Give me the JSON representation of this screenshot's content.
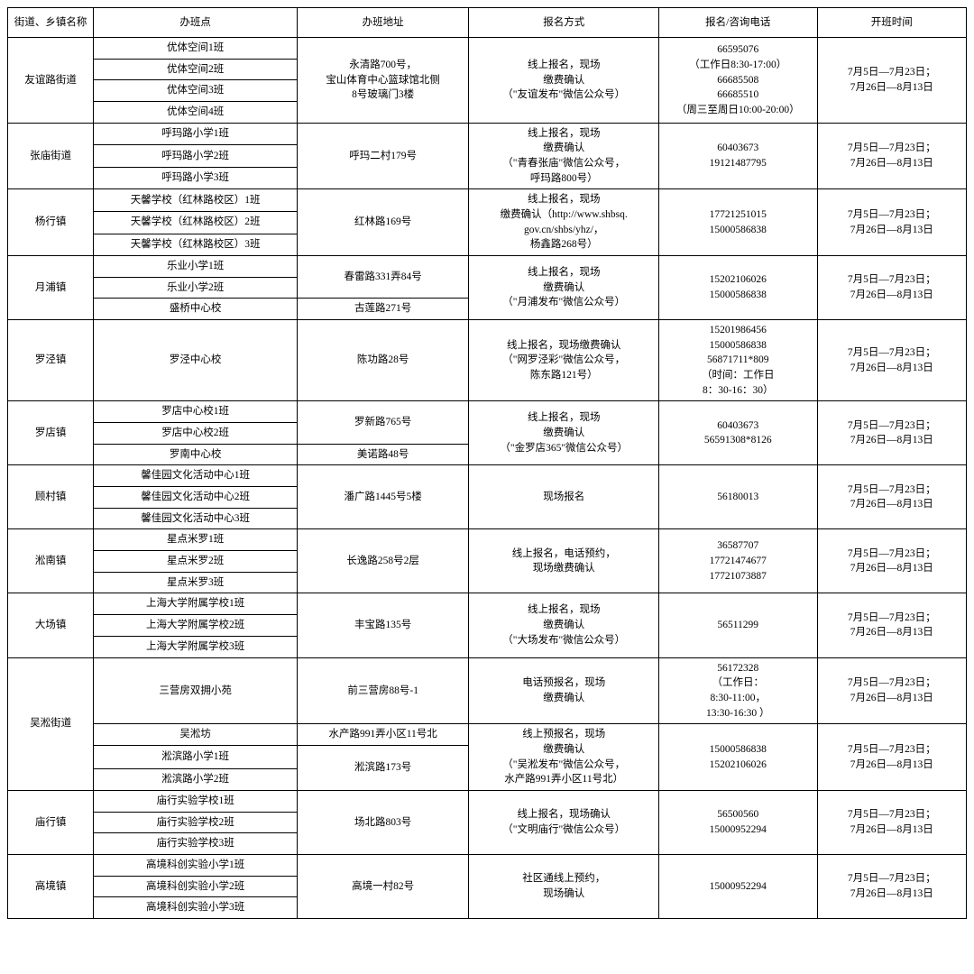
{
  "columns": [
    "街道、乡镇名称",
    "办班点",
    "办班地址",
    "报名方式",
    "报名/咨询电话",
    "开班时间"
  ],
  "districts": [
    {
      "name": "友谊路街道",
      "rows": [
        {
          "class": "优体空间1班",
          "address": "永清路700号，\n宝山体育中心篮球馆北侧\n8号玻璃门3楼",
          "address_rowspan": 4,
          "apply": "线上报名，现场\n缴费确认\n（\"友谊发布\"微信公众号）",
          "apply_rowspan": 4,
          "phone": "66595076\n（工作日8:30-17:00）\n66685508\n66685510\n（周三至周日10:00-20:00）",
          "phone_rowspan": 4,
          "time": "7月5日—7月23日；\n7月26日—8月13日",
          "time_rowspan": 4
        },
        {
          "class": "优体空间2班"
        },
        {
          "class": "优体空间3班"
        },
        {
          "class": "优体空间4班"
        }
      ]
    },
    {
      "name": "张庙街道",
      "rows": [
        {
          "class": "呼玛路小学1班",
          "address": "呼玛二村179号",
          "address_rowspan": 3,
          "apply": "线上报名，现场\n缴费确认\n（\"青春张庙\"微信公众号，\n呼玛路800号）",
          "apply_rowspan": 3,
          "phone": "60403673\n19121487795",
          "phone_rowspan": 3,
          "time": "7月5日—7月23日；\n7月26日—8月13日",
          "time_rowspan": 3
        },
        {
          "class": "呼玛路小学2班"
        },
        {
          "class": "呼玛路小学3班"
        }
      ]
    },
    {
      "name": "杨行镇",
      "rows": [
        {
          "class": "天馨学校（红林路校区）1班",
          "address": "红林路169号",
          "address_rowspan": 3,
          "apply": "线上报名，现场\n缴费确认（http://www.shbsq.\ngov.cn/shbs/yhz/，\n杨鑫路268号）",
          "apply_rowspan": 3,
          "phone": "17721251015\n15000586838",
          "phone_rowspan": 3,
          "time": "7月5日—7月23日；\n7月26日—8月13日",
          "time_rowspan": 3
        },
        {
          "class": "天馨学校（红林路校区）2班"
        },
        {
          "class": "天馨学校（红林路校区）3班"
        }
      ]
    },
    {
      "name": "月浦镇",
      "rows": [
        {
          "class": "乐业小学1班",
          "address": "春雷路331弄84号",
          "address_rowspan": 2,
          "apply": "线上报名，现场\n缴费确认\n（\"月浦发布\"微信公众号）",
          "apply_rowspan": 3,
          "phone": "15202106026\n15000586838",
          "phone_rowspan": 3,
          "time": "7月5日—7月23日；\n7月26日—8月13日",
          "time_rowspan": 3
        },
        {
          "class": "乐业小学2班"
        },
        {
          "class": "盛桥中心校",
          "address": "古莲路271号"
        }
      ]
    },
    {
      "name": "罗泾镇",
      "rows": [
        {
          "class": "罗泾中心校",
          "address": "陈功路28号",
          "apply": "线上报名，现场缴费确认\n（\"网罗泾彩\"微信公众号，\n陈东路121号）",
          "phone": "15201986456\n15000586838\n56871711*809\n（时间：工作日\n8：30-16：30）",
          "time": "7月5日—7月23日；\n7月26日—8月13日"
        }
      ]
    },
    {
      "name": "罗店镇",
      "rows": [
        {
          "class": "罗店中心校1班",
          "address": "罗新路765号",
          "address_rowspan": 2,
          "apply": "线上报名，现场\n缴费确认\n（\"金罗店365\"微信公众号）",
          "apply_rowspan": 3,
          "phone": "60403673\n56591308*8126",
          "phone_rowspan": 3,
          "time": "7月5日—7月23日；\n7月26日—8月13日",
          "time_rowspan": 3
        },
        {
          "class": "罗店中心校2班"
        },
        {
          "class": "罗南中心校",
          "address": "美诺路48号"
        }
      ]
    },
    {
      "name": "顾村镇",
      "rows": [
        {
          "class": "馨佳园文化活动中心1班",
          "address": "潘广路1445号5楼",
          "address_rowspan": 3,
          "apply": "现场报名",
          "apply_rowspan": 3,
          "phone": "56180013",
          "phone_rowspan": 3,
          "time": "7月5日—7月23日；\n7月26日—8月13日",
          "time_rowspan": 3
        },
        {
          "class": "馨佳园文化活动中心2班"
        },
        {
          "class": "馨佳园文化活动中心3班"
        }
      ]
    },
    {
      "name": "淞南镇",
      "rows": [
        {
          "class": "星点米罗1班",
          "address": "长逸路258号2层",
          "address_rowspan": 3,
          "apply": "线上报名，电话预约，\n现场缴费确认",
          "apply_rowspan": 3,
          "phone": "36587707\n17721474677\n17721073887",
          "phone_rowspan": 3,
          "time": "7月5日—7月23日；\n7月26日—8月13日",
          "time_rowspan": 3
        },
        {
          "class": "星点米罗2班"
        },
        {
          "class": "星点米罗3班"
        }
      ]
    },
    {
      "name": "大场镇",
      "rows": [
        {
          "class": "上海大学附属学校1班",
          "address": "丰宝路135号",
          "address_rowspan": 3,
          "apply": "线上报名，现场\n缴费确认\n（\"大场发布\"微信公众号）",
          "apply_rowspan": 3,
          "phone": "56511299",
          "phone_rowspan": 3,
          "time": "7月5日—7月23日；\n7月26日—8月13日",
          "time_rowspan": 3
        },
        {
          "class": "上海大学附属学校2班"
        },
        {
          "class": "上海大学附属学校3班"
        }
      ]
    },
    {
      "name": "吴淞街道",
      "rows": [
        {
          "class": "三营房双拥小苑",
          "address": "前三营房88号-1",
          "apply": "电话预报名，现场\n缴费确认",
          "phone": "56172328\n（工作日：\n8:30-11:00，\n13:30-16:30 ）",
          "time": "7月5日—7月23日；\n7月26日—8月13日"
        },
        {
          "class": "吴淞坊",
          "address": "水产路991弄小区11号北",
          "apply": "线上预报名，现场\n缴费确认\n（\"吴淞发布\"微信公众号，\n水产路991弄小区11号北）",
          "apply_rowspan": 3,
          "phone": "15000586838\n15202106026",
          "phone_rowspan": 3,
          "time": "7月5日—7月23日；\n7月26日—8月13日",
          "time_rowspan": 3
        },
        {
          "class": "淞滨路小学1班",
          "address": "淞滨路173号",
          "address_rowspan": 2
        },
        {
          "class": "淞滨路小学2班"
        }
      ]
    },
    {
      "name": "庙行镇",
      "rows": [
        {
          "class": "庙行实验学校1班",
          "address": "场北路803号",
          "address_rowspan": 3,
          "apply": "线上报名，现场确认\n（\"文明庙行\"微信公众号）",
          "apply_rowspan": 3,
          "phone": "56500560\n15000952294",
          "phone_rowspan": 3,
          "time": "7月5日—7月23日；\n7月26日—8月13日",
          "time_rowspan": 3
        },
        {
          "class": "庙行实验学校2班"
        },
        {
          "class": "庙行实验学校3班"
        }
      ]
    },
    {
      "name": "高境镇",
      "rows": [
        {
          "class": "高境科创实验小学1班",
          "address": "高境一村82号",
          "address_rowspan": 3,
          "apply": "社区通线上预约，\n现场确认",
          "apply_rowspan": 3,
          "phone": "15000952294",
          "phone_rowspan": 3,
          "time": "7月5日—7月23日；\n7月26日—8月13日",
          "time_rowspan": 3
        },
        {
          "class": "高境科创实验小学2班"
        },
        {
          "class": "高境科创实验小学3班"
        }
      ]
    }
  ]
}
